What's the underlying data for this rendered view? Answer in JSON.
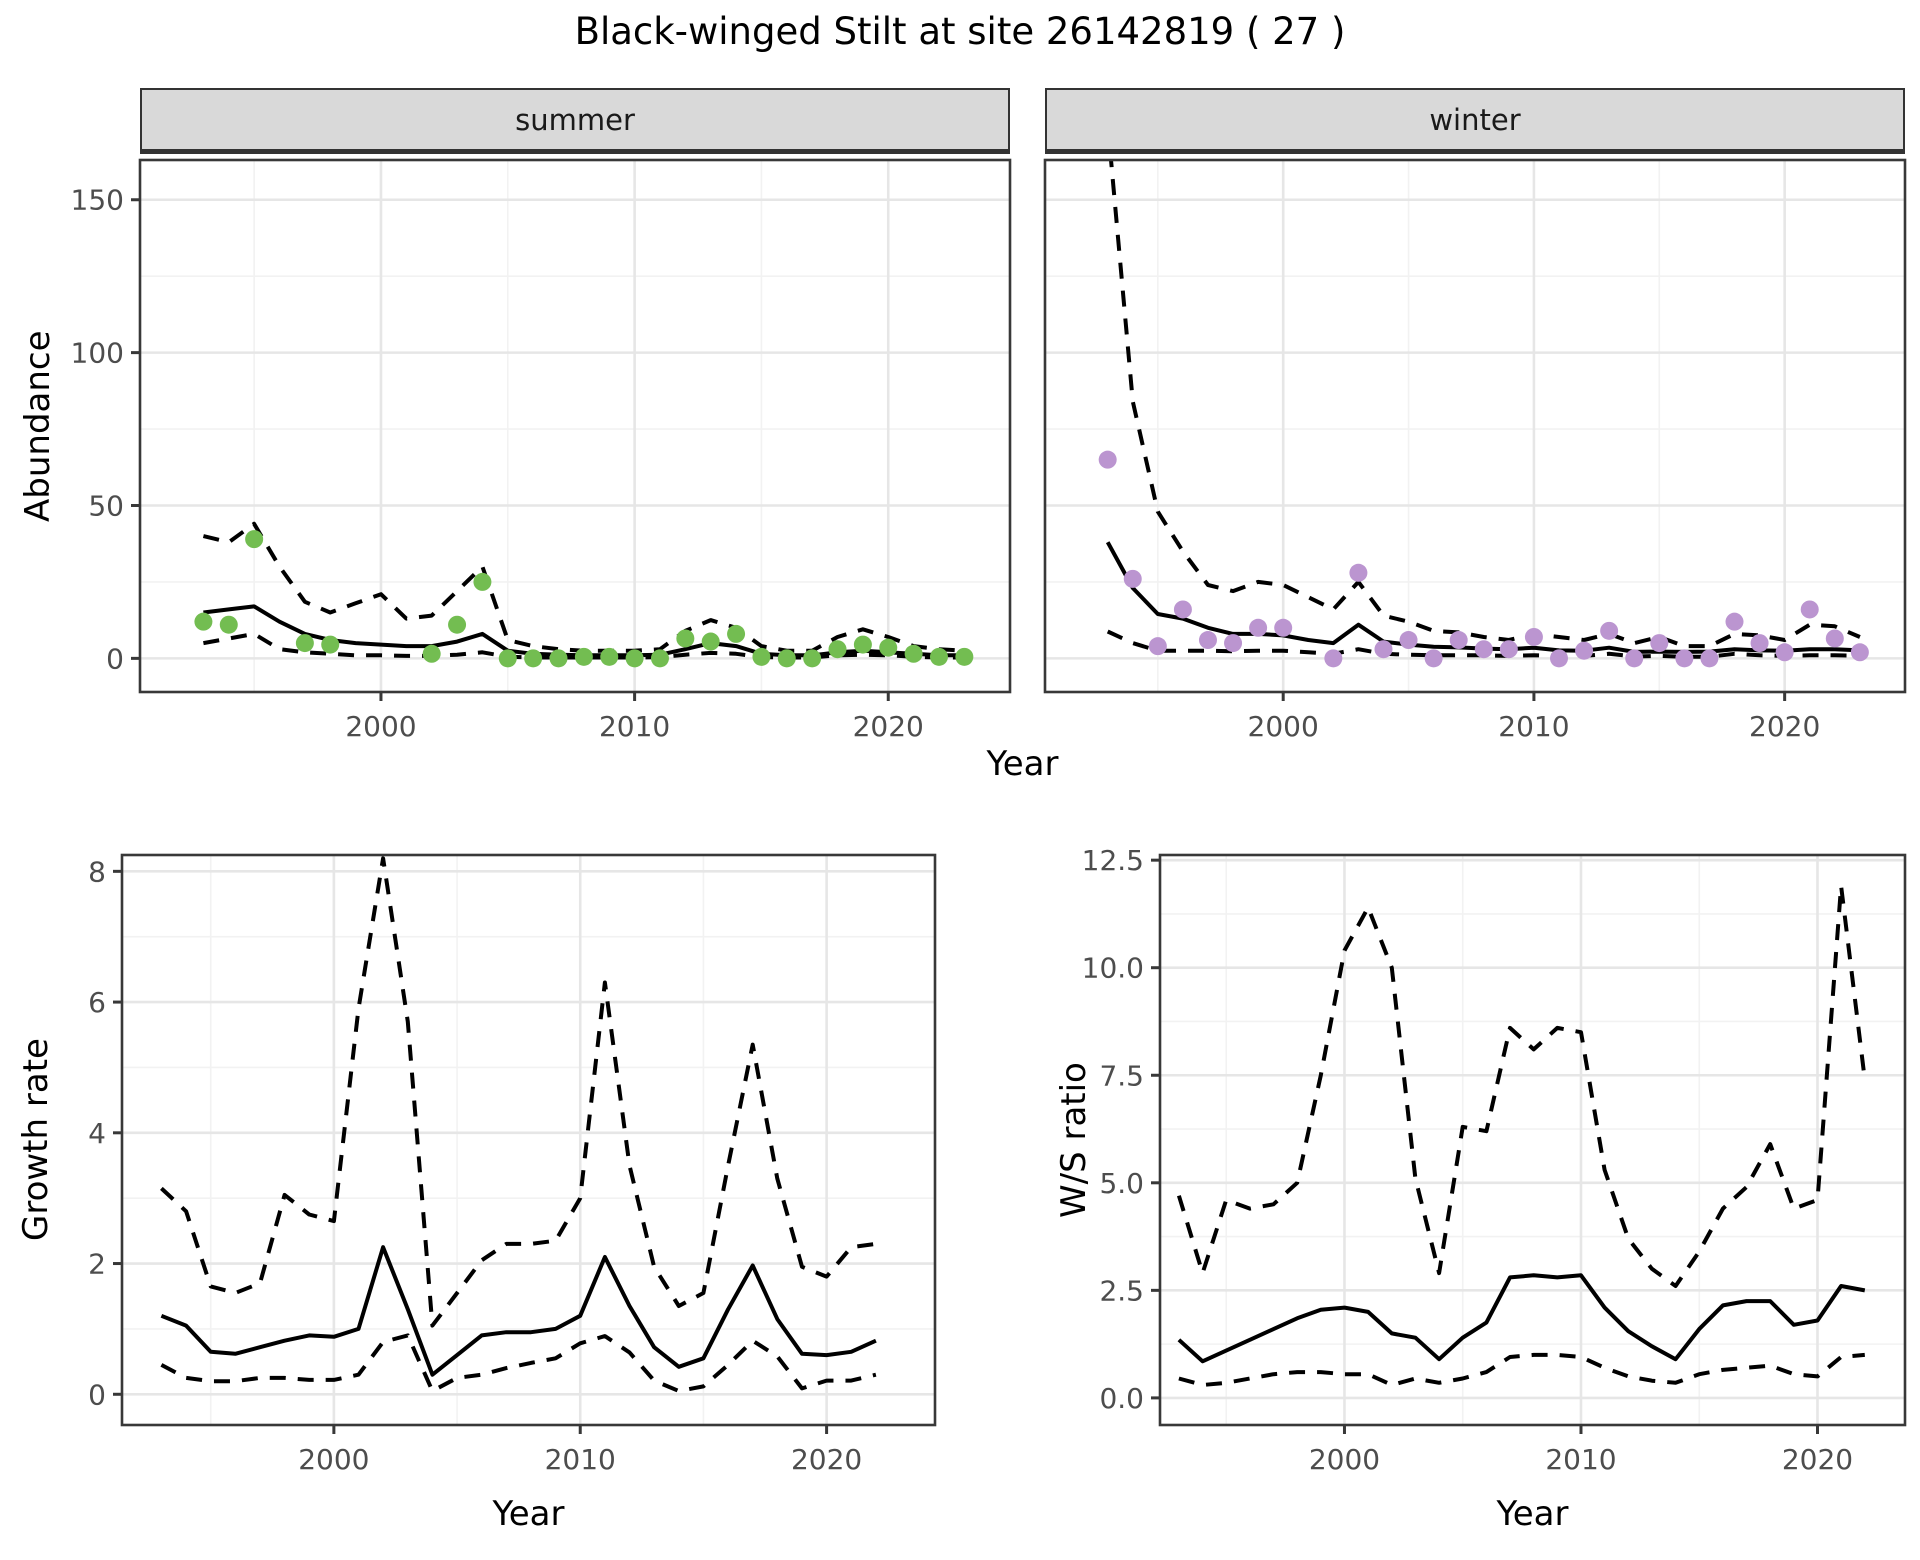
{
  "title": "Black-winged Stilt at site 26142819 ( 27 )",
  "chart_data": [
    {
      "type": "line",
      "panel": "abundance-summer",
      "facet_label": "summer",
      "ylabel": "Abundance",
      "xlabel": "Year",
      "legend_position": "none",
      "grid": true,
      "xlim": [
        1990.5,
        2024.8
      ],
      "ylim": [
        -11,
        163
      ],
      "x_ticks": [
        2000,
        2010,
        2020
      ],
      "x_tick_labels": [
        "2000",
        "2010",
        "2020"
      ],
      "x_minor_ticks": [
        1995,
        2005,
        2015
      ],
      "y_ticks": [
        0,
        50,
        100,
        150
      ],
      "y_tick_labels": [
        "0",
        "50",
        "100",
        "150"
      ],
      "y_minor_ticks": [
        25,
        75,
        125
      ],
      "point_color": "#73bd51",
      "line_color": "#000000",
      "years": [
        1993,
        1994,
        1995,
        1996,
        1997,
        1998,
        1999,
        2000,
        2001,
        2002,
        2003,
        2004,
        2005,
        2006,
        2007,
        2008,
        2009,
        2010,
        2011,
        2012,
        2013,
        2014,
        2015,
        2016,
        2017,
        2018,
        2019,
        2020,
        2021,
        2022,
        2023
      ],
      "observed": [
        12,
        11,
        39,
        null,
        5,
        4.5,
        null,
        null,
        null,
        1.5,
        11,
        25,
        0,
        0,
        0,
        0.5,
        0.5,
        0,
        0,
        6.5,
        5.5,
        8,
        0.5,
        0,
        0,
        3,
        4.5,
        3.5,
        1.5,
        0.5,
        0.5
      ],
      "median": [
        15,
        16,
        17,
        12,
        8,
        6,
        5,
        4.5,
        4,
        4,
        5.5,
        8,
        2.5,
        1.5,
        1.2,
        1,
        1,
        1,
        1.2,
        3,
        5,
        4,
        1.5,
        1,
        1,
        2,
        2.5,
        2,
        1.5,
        1,
        1
      ],
      "ci_upper": [
        40,
        38,
        44,
        30,
        18.5,
        15,
        18,
        21,
        13,
        14,
        22,
        30,
        6,
        4,
        3,
        2.5,
        2.5,
        2.5,
        3,
        9,
        12.5,
        10,
        4,
        2.5,
        2.5,
        7,
        9.5,
        7,
        4,
        3,
        2.5
      ],
      "ci_lower": [
        5,
        6.5,
        8,
        3,
        2,
        1.5,
        1,
        1,
        0.8,
        0.8,
        1.2,
        2,
        0.5,
        0.3,
        0.3,
        0.3,
        0.3,
        0.3,
        0.4,
        1.2,
        1.8,
        1.5,
        0.4,
        0.3,
        0.3,
        1,
        1.2,
        1,
        0.5,
        0.3,
        0.3
      ]
    },
    {
      "type": "line",
      "panel": "abundance-winter",
      "facet_label": "winter",
      "ylabel": "Abundance",
      "xlabel": "Year",
      "legend_position": "none",
      "grid": true,
      "xlim": [
        1990.5,
        2024.8
      ],
      "ylim": [
        -11,
        163
      ],
      "x_ticks": [
        2000,
        2010,
        2020
      ],
      "x_tick_labels": [
        "2000",
        "2010",
        "2020"
      ],
      "x_minor_ticks": [
        1995,
        2005,
        2015
      ],
      "y_ticks": [
        0,
        50,
        100,
        150
      ],
      "y_tick_labels": [
        "0",
        "50",
        "100",
        "150"
      ],
      "y_minor_ticks": [
        25,
        75,
        125
      ],
      "point_color": "#bb95d0",
      "line_color": "#000000",
      "years": [
        1993,
        1994,
        1995,
        1996,
        1997,
        1998,
        1999,
        2000,
        2001,
        2002,
        2003,
        2004,
        2005,
        2006,
        2007,
        2008,
        2009,
        2010,
        2011,
        2012,
        2013,
        2014,
        2015,
        2016,
        2017,
        2018,
        2019,
        2020,
        2021,
        2022,
        2023
      ],
      "observed": [
        65,
        26,
        4,
        16,
        6,
        5,
        10,
        10,
        null,
        0,
        28,
        3,
        6,
        0,
        6,
        3,
        3,
        7,
        0,
        2.5,
        9,
        0,
        5,
        0,
        0,
        12,
        5,
        2,
        16,
        6.5,
        2
      ],
      "median": [
        38,
        23,
        14.5,
        13,
        10,
        8,
        8,
        7.5,
        6,
        5,
        11,
        5.5,
        4.5,
        3.8,
        3.6,
        3.2,
        3,
        3.5,
        2.6,
        2.5,
        3.5,
        2.1,
        2.2,
        2.1,
        2.2,
        3,
        2.6,
        2.5,
        3,
        3,
        2.6
      ],
      "ci_upper": [
        175,
        84,
        48,
        35,
        24,
        22,
        25,
        24,
        20,
        16,
        25,
        14,
        12,
        9,
        8.5,
        7,
        6,
        8,
        7,
        6,
        8,
        5,
        7,
        4,
        4,
        8,
        7.5,
        6,
        11,
        10.5,
        7
      ],
      "ci_lower": [
        8.8,
        5,
        2.5,
        2.5,
        2.5,
        2.3,
        2.5,
        2.5,
        2,
        1.5,
        3,
        1.5,
        1.2,
        1,
        1,
        1,
        0.8,
        1,
        0.8,
        0.8,
        1.5,
        0.6,
        0.8,
        0.5,
        0.5,
        1.5,
        1,
        0.8,
        1,
        1,
        0.9
      ]
    },
    {
      "type": "line",
      "panel": "growth-rate",
      "facet_label": "",
      "ylabel": "Growth rate",
      "xlabel": "Year",
      "legend_position": "none",
      "grid": true,
      "xlim": [
        1991.4,
        2024.4
      ],
      "ylim": [
        -0.47,
        8.25
      ],
      "x_ticks": [
        2000,
        2010,
        2020
      ],
      "x_tick_labels": [
        "2000",
        "2010",
        "2020"
      ],
      "x_minor_ticks": [
        1995,
        2005,
        2015
      ],
      "y_ticks": [
        0,
        2,
        4,
        6,
        8
      ],
      "y_tick_labels": [
        "0",
        "2",
        "4",
        "6",
        "8"
      ],
      "y_minor_ticks": [
        1,
        3,
        5,
        7
      ],
      "point_color": null,
      "line_color": "#000000",
      "years": [
        1993,
        1994,
        1995,
        1996,
        1997,
        1998,
        1999,
        2000,
        2001,
        2002,
        2003,
        2004,
        2005,
        2006,
        2007,
        2008,
        2009,
        2010,
        2011,
        2012,
        2013,
        2014,
        2015,
        2016,
        2017,
        2018,
        2019,
        2020,
        2021,
        2022
      ],
      "observed": null,
      "median": [
        1.2,
        1.05,
        0.65,
        0.62,
        0.72,
        0.82,
        0.9,
        0.88,
        1.0,
        2.25,
        1.3,
        0.3,
        0.6,
        0.9,
        0.95,
        0.95,
        1.0,
        1.2,
        2.1,
        1.35,
        0.72,
        0.42,
        0.55,
        1.3,
        1.97,
        1.15,
        0.62,
        0.6,
        0.65,
        0.82
      ],
      "ci_upper": [
        3.15,
        2.8,
        1.65,
        1.55,
        1.7,
        3.05,
        2.75,
        2.65,
        5.9,
        8.2,
        5.7,
        1.05,
        1.55,
        2.05,
        2.3,
        2.3,
        2.35,
        3.0,
        6.3,
        3.5,
        1.95,
        1.35,
        1.55,
        3.5,
        5.35,
        3.3,
        1.95,
        1.8,
        2.25,
        2.3
      ],
      "ci_lower": [
        0.45,
        0.25,
        0.2,
        0.2,
        0.25,
        0.25,
        0.22,
        0.22,
        0.3,
        0.8,
        0.9,
        0.05,
        0.25,
        0.3,
        0.4,
        0.48,
        0.55,
        0.78,
        0.89,
        0.64,
        0.21,
        0.05,
        0.12,
        0.45,
        0.82,
        0.58,
        0.09,
        0.21,
        0.21,
        0.3
      ]
    },
    {
      "type": "line",
      "panel": "ws-ratio",
      "facet_label": "",
      "ylabel": "W/S ratio",
      "xlabel": "Year",
      "legend_position": "none",
      "grid": true,
      "xlim": [
        1992.2,
        2023.7
      ],
      "ylim": [
        -0.63,
        12.62
      ],
      "x_ticks": [
        2000,
        2010,
        2020
      ],
      "x_tick_labels": [
        "2000",
        "2010",
        "2020"
      ],
      "x_minor_ticks": [
        1995,
        2005,
        2015
      ],
      "y_ticks": [
        0,
        2.5,
        5,
        7.5,
        10,
        12.5
      ],
      "y_tick_labels": [
        "0.0",
        "2.5",
        "5.0",
        "7.5",
        "10.0",
        "12.5"
      ],
      "y_minor_ticks": [
        1.25,
        3.75,
        6.25,
        8.75,
        11.25
      ],
      "point_color": null,
      "line_color": "#000000",
      "years": [
        1993,
        1994,
        1995,
        1996,
        1997,
        1998,
        1999,
        2000,
        2001,
        2002,
        2003,
        2004,
        2005,
        2006,
        2007,
        2008,
        2009,
        2010,
        2011,
        2012,
        2013,
        2014,
        2015,
        2016,
        2017,
        2018,
        2019,
        2020,
        2021,
        2022
      ],
      "observed": null,
      "median": [
        1.35,
        0.85,
        1.1,
        1.35,
        1.6,
        1.85,
        2.05,
        2.1,
        2.0,
        1.5,
        1.4,
        0.9,
        1.4,
        1.75,
        2.8,
        2.85,
        2.8,
        2.85,
        2.1,
        1.55,
        1.2,
        0.9,
        1.6,
        2.15,
        2.25,
        2.25,
        1.7,
        1.8,
        2.6,
        2.5
      ],
      "ci_upper": [
        4.7,
        2.9,
        4.6,
        4.4,
        4.5,
        5.0,
        7.5,
        10.4,
        11.4,
        10.0,
        5.1,
        2.9,
        6.3,
        6.2,
        8.6,
        8.1,
        8.6,
        8.5,
        5.3,
        3.7,
        3.0,
        2.6,
        3.4,
        4.4,
        4.9,
        5.9,
        4.4,
        4.6,
        11.9,
        7.4
      ],
      "ci_lower": [
        0.45,
        0.3,
        0.35,
        0.45,
        0.55,
        0.6,
        0.6,
        0.55,
        0.55,
        0.3,
        0.45,
        0.35,
        0.45,
        0.6,
        0.95,
        1.0,
        1.0,
        0.95,
        0.7,
        0.5,
        0.4,
        0.35,
        0.55,
        0.65,
        0.7,
        0.75,
        0.55,
        0.5,
        0.95,
        1.0
      ]
    }
  ],
  "style": {
    "panel_background": "#ffffff",
    "grid_major_color": "#e6e6e6",
    "grid_minor_color": "#f2f2f2",
    "panel_border_color": "#383838",
    "tick_label_color": "#4d4d4d",
    "ci_line_style": "dashed",
    "median_line_style": "solid"
  }
}
